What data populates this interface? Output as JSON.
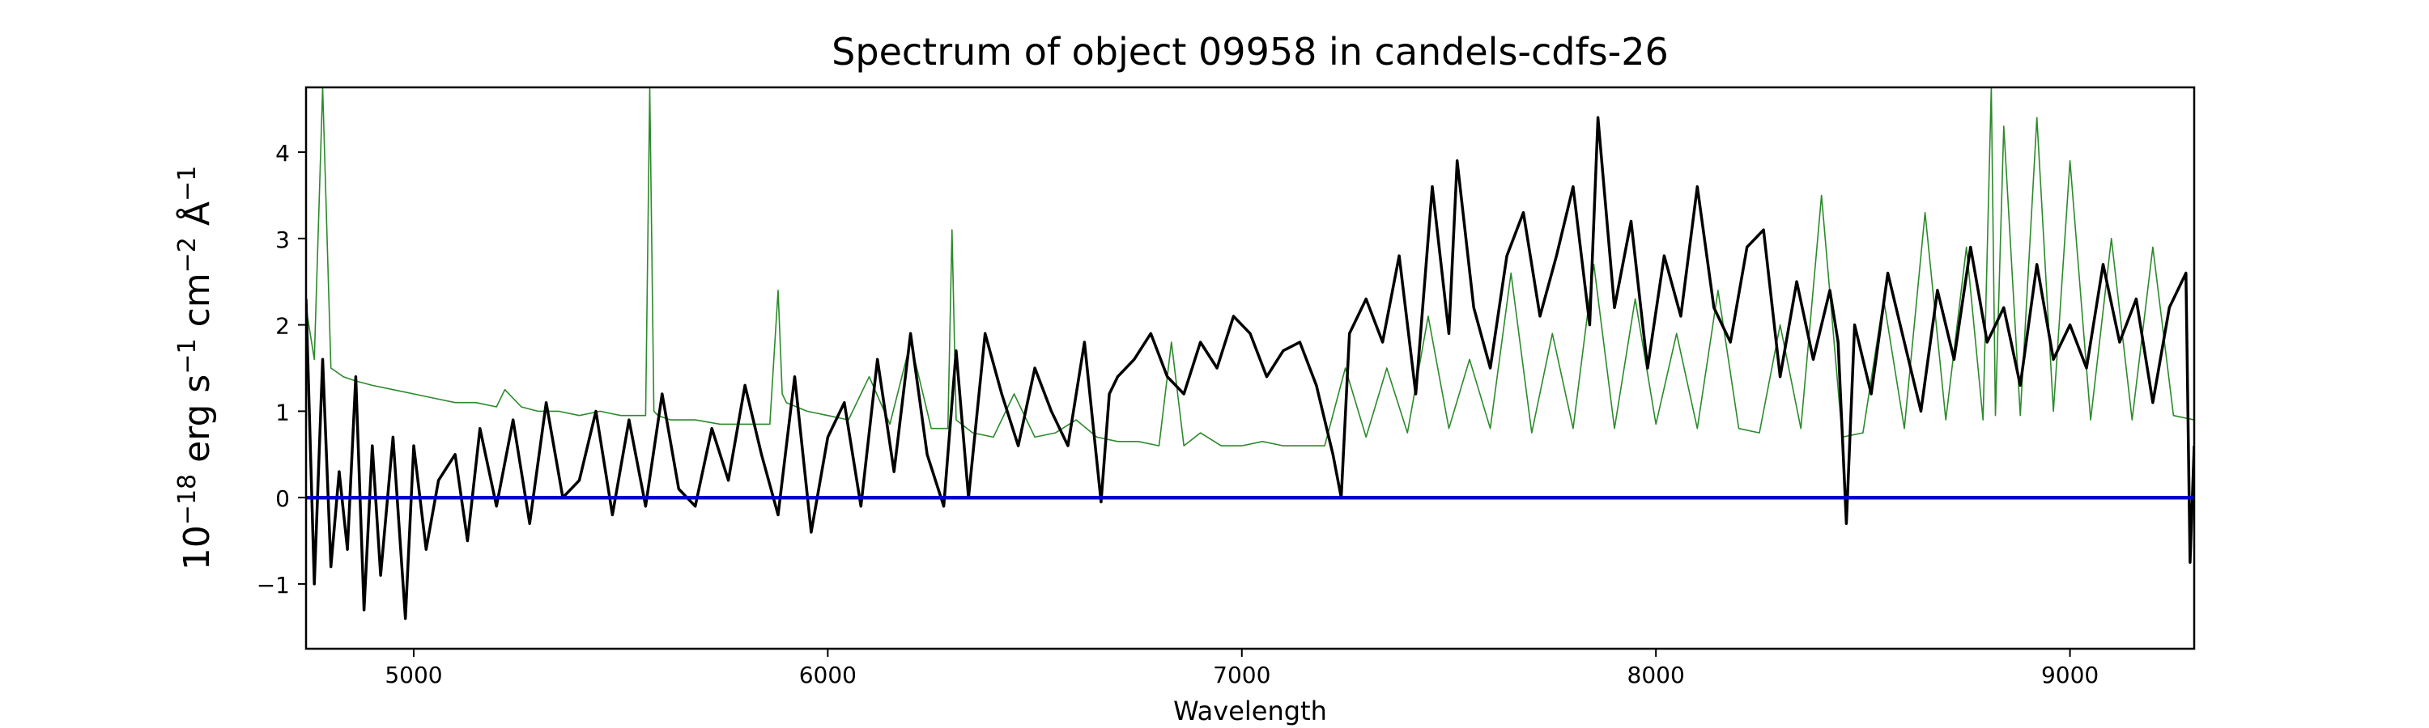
{
  "chart_data": {
    "type": "line",
    "title": "Spectrum of object 09958 in candels-cdfs-26",
    "xlabel": "Wavelength",
    "ylabel_parts": {
      "base": "10",
      "exp1": "−18",
      "erg": " erg s",
      "exp2": "−1",
      "cm": " cm",
      "exp3": "−2",
      "ang": " Å",
      "exp4": "−1"
    },
    "xlim": [
      4740,
      9300
    ],
    "ylim": [
      -1.75,
      4.75
    ],
    "xticks": [
      5000,
      6000,
      7000,
      8000,
      9000
    ],
    "yticks": [
      -1,
      0,
      1,
      2,
      3,
      4
    ],
    "grid": false,
    "legend": "none",
    "series": [
      {
        "role": "flux",
        "color": "#000000",
        "x": [
          4740,
          4760,
          4780,
          4800,
          4820,
          4840,
          4860,
          4880,
          4900,
          4920,
          4950,
          4980,
          5000,
          5030,
          5060,
          5100,
          5130,
          5160,
          5200,
          5240,
          5280,
          5320,
          5360,
          5400,
          5440,
          5480,
          5520,
          5560,
          5600,
          5640,
          5680,
          5720,
          5760,
          5800,
          5840,
          5880,
          5920,
          5960,
          6000,
          6040,
          6080,
          6120,
          6160,
          6200,
          6240,
          6280,
          6310,
          6340,
          6380,
          6420,
          6460,
          6500,
          6540,
          6580,
          6620,
          6660,
          6680,
          6700,
          6740,
          6780,
          6820,
          6860,
          6900,
          6940,
          6980,
          7020,
          7060,
          7100,
          7140,
          7180,
          7220,
          7240,
          7260,
          7300,
          7340,
          7380,
          7420,
          7460,
          7500,
          7520,
          7560,
          7600,
          7640,
          7680,
          7720,
          7760,
          7800,
          7840,
          7860,
          7900,
          7940,
          7980,
          8020,
          8060,
          8100,
          8140,
          8180,
          8220,
          8260,
          8300,
          8340,
          8380,
          8420,
          8440,
          8460,
          8480,
          8520,
          8560,
          8600,
          8640,
          8680,
          8720,
          8760,
          8800,
          8840,
          8880,
          8920,
          8960,
          9000,
          9040,
          9080,
          9120,
          9160,
          9200,
          9240,
          9280,
          9290,
          9300
        ],
        "y": [
          2.3,
          -1.0,
          1.6,
          -0.8,
          0.3,
          -0.6,
          1.4,
          -1.3,
          0.6,
          -0.9,
          0.7,
          -1.4,
          0.6,
          -0.6,
          0.2,
          0.5,
          -0.5,
          0.8,
          -0.1,
          0.9,
          -0.3,
          1.1,
          0.0,
          0.2,
          1.0,
          -0.2,
          0.9,
          -0.1,
          1.2,
          0.1,
          -0.1,
          0.8,
          0.2,
          1.3,
          0.5,
          -0.2,
          1.4,
          -0.4,
          0.7,
          1.1,
          -0.1,
          1.6,
          0.3,
          1.9,
          0.5,
          -0.1,
          1.7,
          0.0,
          1.9,
          1.2,
          0.6,
          1.5,
          1.0,
          0.6,
          1.8,
          -0.05,
          1.2,
          1.4,
          1.6,
          1.9,
          1.4,
          1.2,
          1.8,
          1.5,
          2.1,
          1.9,
          1.4,
          1.7,
          1.8,
          1.3,
          0.5,
          0.0,
          1.9,
          2.3,
          1.8,
          2.8,
          1.2,
          3.6,
          1.9,
          3.9,
          2.2,
          1.5,
          2.8,
          3.3,
          2.1,
          2.8,
          3.6,
          2.0,
          4.4,
          2.2,
          3.2,
          1.5,
          2.8,
          2.1,
          3.6,
          2.2,
          1.8,
          2.9,
          3.1,
          1.4,
          2.5,
          1.6,
          2.4,
          1.8,
          -0.3,
          2.0,
          1.2,
          2.6,
          1.8,
          1.0,
          2.4,
          1.6,
          2.9,
          1.8,
          2.2,
          1.3,
          2.7,
          1.6,
          2.0,
          1.5,
          2.7,
          1.8,
          2.3,
          1.1,
          2.2,
          2.6,
          -0.75,
          0.6
        ]
      },
      {
        "role": "error",
        "color": "#2b8a2b",
        "x": [
          4740,
          4760,
          4780,
          4800,
          4830,
          4860,
          4900,
          4950,
          5000,
          5050,
          5100,
          5150,
          5200,
          5220,
          5260,
          5300,
          5350,
          5400,
          5450,
          5500,
          5560,
          5570,
          5580,
          5590,
          5620,
          5680,
          5740,
          5800,
          5860,
          5880,
          5890,
          5900,
          5950,
          6000,
          6050,
          6100,
          6150,
          6200,
          6250,
          6290,
          6300,
          6310,
          6350,
          6400,
          6450,
          6500,
          6550,
          6600,
          6650,
          6700,
          6750,
          6800,
          6830,
          6860,
          6900,
          6950,
          7000,
          7050,
          7100,
          7150,
          7200,
          7250,
          7300,
          7350,
          7400,
          7450,
          7500,
          7550,
          7600,
          7650,
          7700,
          7750,
          7800,
          7850,
          7900,
          7950,
          8000,
          8050,
          8100,
          8150,
          8200,
          8250,
          8300,
          8350,
          8400,
          8450,
          8500,
          8550,
          8600,
          8650,
          8700,
          8750,
          8790,
          8810,
          8820,
          8840,
          8880,
          8920,
          8960,
          9000,
          9050,
          9100,
          9150,
          9200,
          9250,
          9300
        ],
        "y": [
          2.2,
          1.6,
          4.75,
          1.5,
          1.4,
          1.35,
          1.3,
          1.25,
          1.2,
          1.15,
          1.1,
          1.1,
          1.05,
          1.25,
          1.05,
          1.0,
          1.0,
          0.95,
          1.0,
          0.95,
          0.95,
          4.75,
          1.0,
          0.95,
          0.9,
          0.9,
          0.85,
          0.85,
          0.85,
          2.4,
          1.2,
          1.1,
          1.0,
          0.95,
          0.9,
          1.4,
          0.85,
          1.8,
          0.8,
          0.8,
          3.1,
          0.9,
          0.75,
          0.7,
          1.2,
          0.7,
          0.75,
          0.9,
          0.7,
          0.65,
          0.65,
          0.6,
          1.8,
          0.6,
          0.75,
          0.6,
          0.6,
          0.65,
          0.6,
          0.6,
          0.6,
          1.5,
          0.7,
          1.5,
          0.75,
          2.1,
          0.8,
          1.6,
          0.8,
          2.6,
          0.75,
          1.9,
          0.8,
          2.7,
          0.8,
          2.3,
          0.85,
          1.9,
          0.8,
          2.4,
          0.8,
          0.75,
          2.0,
          0.8,
          3.5,
          0.7,
          0.75,
          2.3,
          0.8,
          3.3,
          0.9,
          2.9,
          0.9,
          4.75,
          0.95,
          4.3,
          0.95,
          4.4,
          1.0,
          3.9,
          0.9,
          3.0,
          0.9,
          2.9,
          0.95,
          0.9
        ]
      },
      {
        "role": "zero",
        "color": "#0000cc",
        "x": [
          4740,
          9300
        ],
        "y": [
          0,
          0
        ]
      }
    ]
  }
}
